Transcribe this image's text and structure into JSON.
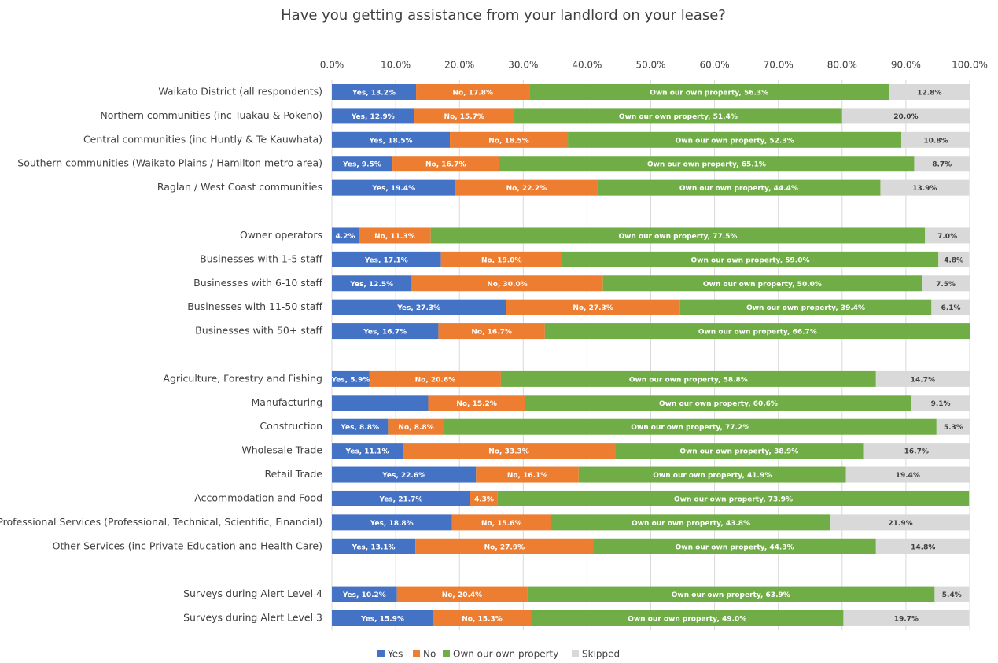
{
  "chart_data": {
    "type": "stacked-bar-horizontal",
    "title": "Have you getting assistance from your landlord on your lease?",
    "categories": [
      "Waikato District (all respondents)",
      "Northern communities (inc Tuakau & Pokeno)",
      "Central communities (inc Huntly & Te Kauwhata)",
      "Southern communities (Waikato Plains / Hamilton metro area)",
      "Raglan / West Coast communities",
      null,
      "Owner operators",
      "Businesses with 1-5 staff",
      "Businesses with 6-10 staff",
      "Businesses with 11-50 staff",
      "Businesses with 50+ staff",
      null,
      "Agriculture, Forestry and Fishing",
      "Manufacturing",
      "Construction",
      "Wholesale Trade",
      "Retail Trade",
      "Accommodation and Food",
      "Professional Services (Professional, Technical, Scientific, Financial)",
      "Other Services (inc Private Education and Health Care)",
      null,
      "Surveys during Alert Level 4",
      "Surveys during Alert Level 3"
    ],
    "series": [
      {
        "name": "Yes",
        "color": "#4472c4",
        "label_color": "#ffffff",
        "values": [
          13.2,
          12.9,
          18.5,
          9.5,
          19.4,
          null,
          4.2,
          17.1,
          12.5,
          27.3,
          16.7,
          null,
          5.9,
          15.1,
          8.8,
          11.1,
          22.6,
          21.7,
          18.8,
          13.1,
          null,
          10.2,
          15.9
        ],
        "value_labels": [
          "Yes, 13.2%",
          "Yes, 12.9%",
          "Yes, 18.5%",
          "Yes, 9.5%",
          "Yes, 19.4%",
          null,
          "4.2%",
          "Yes, 17.1%",
          "Yes, 12.5%",
          "Yes, 27.3%",
          "Yes, 16.7%",
          null,
          "Yes, 5.9%",
          null,
          "Yes, 8.8%",
          "Yes, 11.1%",
          "Yes, 22.6%",
          "Yes, 21.7%",
          "Yes, 18.8%",
          "Yes, 13.1%",
          null,
          "Yes, 10.2%",
          "Yes, 15.9%"
        ]
      },
      {
        "name": "No",
        "color": "#ed7d31",
        "label_color": "#ffffff",
        "values": [
          17.8,
          15.7,
          18.5,
          16.7,
          22.2,
          null,
          11.3,
          19.0,
          30.0,
          27.3,
          16.7,
          null,
          20.6,
          15.2,
          8.8,
          33.3,
          16.1,
          4.3,
          15.6,
          27.9,
          null,
          20.4,
          15.3
        ],
        "value_labels": [
          "No, 17.8%",
          "No, 15.7%",
          "No, 18.5%",
          "No, 16.7%",
          "No, 22.2%",
          null,
          "No, 11.3%",
          "No, 19.0%",
          "No, 30.0%",
          "No, 27.3%",
          "No, 16.7%",
          null,
          "No, 20.6%",
          "No, 15.2%",
          "No, 8.8%",
          "No, 33.3%",
          "No, 16.1%",
          "4.3%",
          "No, 15.6%",
          "No, 27.9%",
          null,
          "No, 20.4%",
          "No, 15.3%"
        ]
      },
      {
        "name": "Own our own property",
        "color": "#70ad47",
        "label_color": "#ffffff",
        "values": [
          56.3,
          51.4,
          52.3,
          65.1,
          44.4,
          null,
          77.5,
          59.0,
          50.0,
          39.4,
          66.7,
          null,
          58.8,
          60.6,
          77.2,
          38.9,
          41.9,
          73.9,
          43.8,
          44.3,
          null,
          63.9,
          49.0
        ],
        "value_labels": [
          "Own our own property, 56.3%",
          "Own our own property, 51.4%",
          "Own our own property, 52.3%",
          "Own our own property, 65.1%",
          "Own our own property, 44.4%",
          null,
          "Own our own property, 77.5%",
          "Own our own property, 59.0%",
          "Own our own property, 50.0%",
          "Own our own property, 39.4%",
          "Own our own property, 66.7%",
          null,
          "Own our own property, 58.8%",
          "Own our own property, 60.6%",
          "Own our own property, 77.2%",
          "Own our own property, 38.9%",
          "Own our own property, 41.9%",
          "Own our own property, 73.9%",
          "Own our own property, 43.8%",
          "Own our own property, 44.3%",
          null,
          "Own our own property, 63.9%",
          "Own our own property, 49.0%"
        ]
      },
      {
        "name": "Skipped",
        "color": "#d9d9d9",
        "label_color": "#404040",
        "values": [
          12.8,
          20.0,
          10.8,
          8.7,
          13.9,
          null,
          7.0,
          4.8,
          7.5,
          6.1,
          0,
          null,
          14.7,
          9.1,
          5.3,
          16.7,
          19.4,
          0,
          21.9,
          14.8,
          null,
          5.4,
          19.7
        ],
        "value_labels": [
          "12.8%",
          "20.0%",
          "10.8%",
          "8.7%",
          "13.9%",
          null,
          "7.0%",
          "4.8%",
          "7.5%",
          "6.1%",
          null,
          null,
          "14.7%",
          "9.1%",
          "5.3%",
          "16.7%",
          "19.4%",
          null,
          "21.9%",
          "14.8%",
          null,
          "5.4%",
          "19.7%"
        ]
      }
    ],
    "xlim": [
      0,
      100
    ],
    "xticks": [
      {
        "value": 0,
        "label": "0.0%"
      },
      {
        "value": 10,
        "label": "10.0%"
      },
      {
        "value": 20,
        "label": "20.0%"
      },
      {
        "value": 30,
        "label": "30.0%"
      },
      {
        "value": 40,
        "label": "40.0%"
      },
      {
        "value": 50,
        "label": "50.0%"
      },
      {
        "value": 60,
        "label": "60.0%"
      },
      {
        "value": 70,
        "label": "70.0%"
      },
      {
        "value": 80,
        "label": "80.0%"
      },
      {
        "value": 90,
        "label": "90.0%"
      },
      {
        "value": 100,
        "label": "100.0%"
      }
    ],
    "grid": true,
    "legend": "bottom"
  }
}
